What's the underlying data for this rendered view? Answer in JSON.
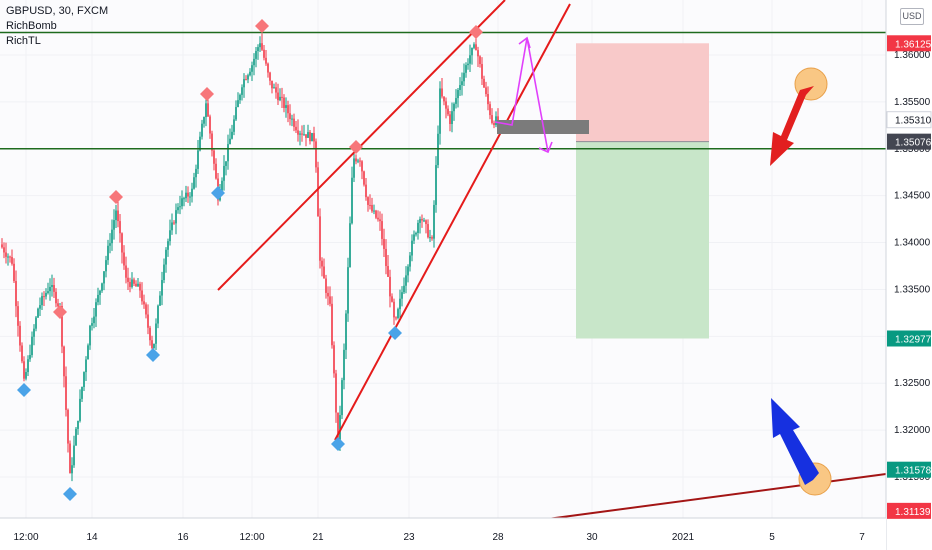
{
  "chart_data": {
    "type": "candlestick",
    "symbol": "GBPUSD",
    "timeframe": "30",
    "exchange": "FXCM",
    "indicators": [
      "RichBomb",
      "RichTL"
    ],
    "currency": "USD",
    "y_ticks": [
      "1.36000",
      "1.35500",
      "1.35000",
      "1.34500",
      "1.34000",
      "1.33500",
      "1.33000",
      "1.32500",
      "1.32000",
      "1.31500"
    ],
    "x_ticks": [
      "12:00",
      "14",
      "16",
      "12:00",
      "21",
      "23",
      "28",
      "30",
      "2021",
      "5",
      "7"
    ],
    "ylim": [
      1.3102,
      1.3626
    ],
    "price_labels": [
      {
        "label": "1.36125",
        "color": "#f23645"
      },
      {
        "label": "1.35310",
        "color": "#ffffff"
      },
      {
        "label": "1.35076",
        "color": "#434651"
      },
      {
        "label": "1.32977",
        "color": "#089981"
      },
      {
        "label": "1.31578",
        "color": "#089981"
      },
      {
        "label": "1.31139",
        "color": "#f23645"
      }
    ],
    "horizontal_levels": [
      {
        "price": 1.3624,
        "color": "#1e6b1e"
      },
      {
        "price": 1.35,
        "color": "#1e6b1e"
      }
    ],
    "trade_setup": {
      "entry": 1.35076,
      "stop": 1.36125,
      "target": 1.32977,
      "stop_color": "#f8c9c9",
      "target_color": "#c8e6c9"
    },
    "colors": {
      "up": "#089981",
      "down": "#f23645",
      "trendline": "#e51b1b",
      "support_line": "#a31515",
      "marker_high": "#f7767a",
      "marker_low": "#4aa3e8",
      "magenta": "#e040fb"
    }
  }
}
